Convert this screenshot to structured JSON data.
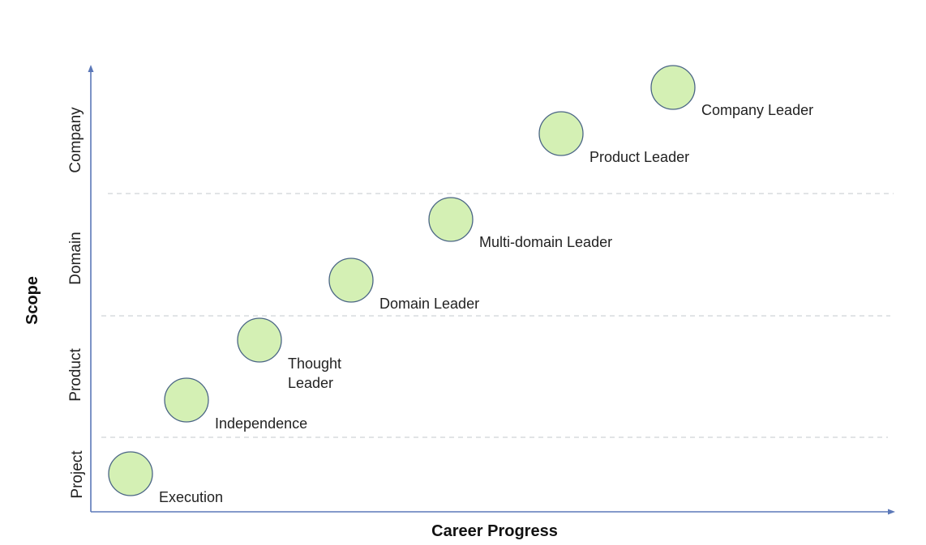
{
  "axes": {
    "x_title": "Career Progress",
    "y_title": "Scope"
  },
  "bands": [
    {
      "id": "project",
      "label": "Project"
    },
    {
      "id": "product",
      "label": "Product"
    },
    {
      "id": "domain",
      "label": "Domain"
    },
    {
      "id": "company",
      "label": "Company"
    }
  ],
  "nodes": [
    {
      "id": "execution",
      "lines": [
        "Execution"
      ]
    },
    {
      "id": "independence",
      "lines": [
        "Independence"
      ]
    },
    {
      "id": "thought-leader",
      "lines": [
        "Thought",
        "Leader"
      ]
    },
    {
      "id": "domain-leader",
      "lines": [
        "Domain Leader"
      ]
    },
    {
      "id": "multi-domain-leader",
      "lines": [
        "Multi-domain Leader"
      ]
    },
    {
      "id": "product-leader",
      "lines": [
        "Product Leader"
      ]
    },
    {
      "id": "company-leader",
      "lines": [
        "Company Leader"
      ]
    }
  ],
  "colors": {
    "node_fill": "#d4f0b4",
    "node_stroke": "#4a6585",
    "axis": "#5b78b8",
    "divider": "#cfd3d8"
  }
}
